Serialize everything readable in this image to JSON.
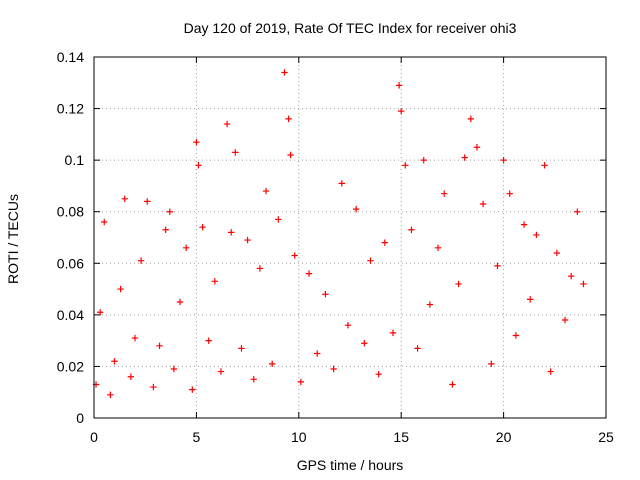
{
  "chart_data": {
    "type": "scatter",
    "title": "Day 120 of 2019, Rate Of TEC Index for receiver ohi3",
    "xlabel": "GPS time / hours",
    "ylabel": "ROTI / TECUs",
    "xlim": [
      0,
      25
    ],
    "ylim": [
      0,
      0.14
    ],
    "x_ticks": [
      0,
      5,
      10,
      15,
      20,
      25
    ],
    "x_tick_labels": [
      "0",
      "5",
      "10",
      "15",
      "20",
      "25"
    ],
    "y_ticks": [
      0,
      0.02,
      0.04,
      0.06,
      0.08,
      0.1,
      0.12,
      0.14
    ],
    "y_tick_labels": [
      "0",
      "0.02",
      "0.04",
      "0.06",
      "0.08",
      "0.1",
      "0.12",
      "0.14"
    ],
    "grid": true,
    "marker": "+",
    "series": [
      {
        "name": "ROTI",
        "color": "#ff0000",
        "x": [
          0.1,
          0.3,
          0.5,
          0.8,
          1.0,
          1.3,
          1.5,
          1.8,
          2.0,
          2.3,
          2.6,
          2.9,
          3.2,
          3.5,
          3.7,
          3.9,
          4.2,
          4.5,
          4.8,
          5.0,
          5.1,
          5.3,
          5.6,
          5.9,
          6.2,
          6.5,
          6.7,
          6.9,
          7.2,
          7.5,
          7.8,
          8.1,
          8.4,
          8.7,
          9.0,
          9.3,
          9.5,
          9.6,
          9.8,
          10.1,
          10.5,
          10.9,
          11.3,
          11.7,
          12.1,
          12.4,
          12.8,
          13.2,
          13.5,
          13.9,
          14.2,
          14.6,
          14.9,
          15.0,
          15.2,
          15.5,
          15.8,
          16.1,
          16.4,
          16.8,
          17.1,
          17.5,
          17.8,
          18.1,
          18.4,
          18.7,
          19.0,
          19.4,
          19.7,
          20.0,
          20.3,
          20.6,
          21.0,
          21.3,
          21.6,
          22.0,
          22.3,
          22.6,
          23.0,
          23.3,
          23.6,
          23.9
        ],
        "y": [
          0.013,
          0.041,
          0.076,
          0.009,
          0.022,
          0.05,
          0.085,
          0.016,
          0.031,
          0.061,
          0.084,
          0.012,
          0.028,
          0.073,
          0.08,
          0.019,
          0.045,
          0.066,
          0.011,
          0.107,
          0.098,
          0.074,
          0.03,
          0.053,
          0.018,
          0.114,
          0.072,
          0.103,
          0.027,
          0.069,
          0.015,
          0.058,
          0.088,
          0.021,
          0.077,
          0.134,
          0.116,
          0.102,
          0.063,
          0.014,
          0.056,
          0.025,
          0.048,
          0.019,
          0.091,
          0.036,
          0.081,
          0.029,
          0.061,
          0.017,
          0.068,
          0.033,
          0.129,
          0.119,
          0.098,
          0.073,
          0.027,
          0.1,
          0.044,
          0.066,
          0.087,
          0.013,
          0.052,
          0.101,
          0.116,
          0.105,
          0.083,
          0.021,
          0.059,
          0.1,
          0.087,
          0.032,
          0.075,
          0.046,
          0.071,
          0.098,
          0.018,
          0.064,
          0.038,
          0.055,
          0.08,
          0.052
        ]
      }
    ]
  }
}
